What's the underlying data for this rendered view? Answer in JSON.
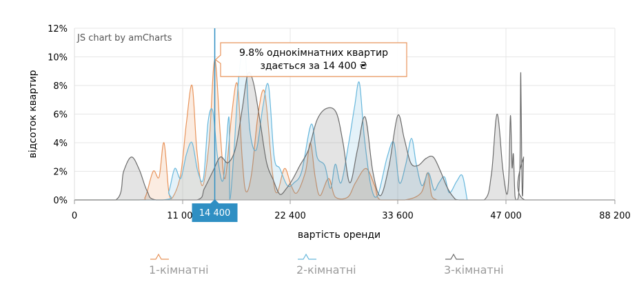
{
  "chart_data": {
    "type": "area",
    "credit": "JS chart by amCharts",
    "xlabel": "вартість оренди",
    "ylabel": "відсоток квартир",
    "xlim": [
      0,
      88200
    ],
    "ylim": [
      0,
      12
    ],
    "y_ticks": [
      {
        "value": 0,
        "label": "0%"
      },
      {
        "value": 2,
        "label": "2%"
      },
      {
        "value": 4,
        "label": "4%"
      },
      {
        "value": 6,
        "label": "6%"
      },
      {
        "value": 8,
        "label": "8%"
      },
      {
        "value": 10,
        "label": "10%"
      },
      {
        "value": 12,
        "label": "12%"
      }
    ],
    "x_ticks": [
      {
        "value": 0,
        "label": "0"
      },
      {
        "value": 11000,
        "label": "11 000"
      },
      {
        "value": 22400,
        "label": "22 400"
      },
      {
        "value": 33600,
        "label": "33 600"
      },
      {
        "value": 47000,
        "label": "47 000"
      },
      {
        "value": 88200,
        "label": "88 200"
      }
    ],
    "grid": true,
    "legend_position": "bottom",
    "cursor": {
      "x": 14400,
      "label": "14 400",
      "tooltip_line1": "9.8% однокімнатних квартир",
      "tooltip_line2": "здається за 14 400 ₴"
    },
    "series": [
      {
        "name": "1-кімнатні",
        "color": "#e8935a",
        "points": [
          [
            0,
            0
          ],
          [
            6500,
            0
          ],
          [
            7200,
            0.2
          ],
          [
            8000,
            2.0
          ],
          [
            8600,
            1.6
          ],
          [
            9100,
            4.0
          ],
          [
            9600,
            0.5
          ],
          [
            10000,
            0.2
          ],
          [
            10800,
            1.8
          ],
          [
            11400,
            5.4
          ],
          [
            12000,
            8.0
          ],
          [
            12500,
            3.5
          ],
          [
            13100,
            1.0
          ],
          [
            13800,
            4.0
          ],
          [
            14400,
            9.8
          ],
          [
            15000,
            4.5
          ],
          [
            15500,
            1.5
          ],
          [
            16200,
            6.0
          ],
          [
            16800,
            8.1
          ],
          [
            17300,
            3.0
          ],
          [
            17700,
            0.6
          ],
          [
            18300,
            1.8
          ],
          [
            19000,
            6.0
          ],
          [
            19700,
            7.5
          ],
          [
            20500,
            2.0
          ],
          [
            21000,
            0.5
          ],
          [
            21800,
            2.2
          ],
          [
            22500,
            1.0
          ],
          [
            23100,
            0.5
          ],
          [
            24000,
            2.0
          ],
          [
            24500,
            4.0
          ],
          [
            25000,
            1.6
          ],
          [
            25500,
            0.3
          ],
          [
            26400,
            1.5
          ],
          [
            27100,
            0.2
          ],
          [
            28400,
            0.2
          ],
          [
            29200,
            1.2
          ],
          [
            30300,
            2.2
          ],
          [
            31200,
            1.0
          ],
          [
            31800,
            0
          ],
          [
            34500,
            0
          ],
          [
            36500,
            0.5
          ],
          [
            37300,
            1.9
          ],
          [
            37800,
            0.3
          ],
          [
            38500,
            0
          ]
        ]
      },
      {
        "name": "2-кімнатні",
        "color": "#67b7dc",
        "points": [
          [
            0,
            0
          ],
          [
            16000,
            0
          ],
          [
            9000,
            0
          ],
          [
            9600,
            0.6
          ],
          [
            10200,
            2.2
          ],
          [
            10800,
            1.5
          ],
          [
            11400,
            3.2
          ],
          [
            12000,
            4.0
          ],
          [
            12600,
            2.0
          ],
          [
            13200,
            1.5
          ],
          [
            13700,
            5.5
          ],
          [
            14200,
            6.2
          ],
          [
            14700,
            3.0
          ],
          [
            15300,
            1.4
          ],
          [
            15900,
            5.8
          ],
          [
            16400,
            3.0
          ],
          [
            17000,
            9.0
          ],
          [
            17600,
            10.5
          ],
          [
            18100,
            5.0
          ],
          [
            18800,
            3.5
          ],
          [
            19500,
            6.5
          ],
          [
            20100,
            8.0
          ],
          [
            20700,
            3.0
          ],
          [
            21300,
            2.2
          ],
          [
            22100,
            1.0
          ],
          [
            22800,
            1.2
          ],
          [
            23600,
            2.0
          ],
          [
            24600,
            5.3
          ],
          [
            25200,
            3.0
          ],
          [
            26000,
            2.4
          ],
          [
            26600,
            0.8
          ],
          [
            27100,
            2.5
          ],
          [
            27700,
            1.2
          ],
          [
            28500,
            4.0
          ],
          [
            29100,
            6.5
          ],
          [
            29600,
            8.2
          ],
          [
            30100,
            4.5
          ],
          [
            30800,
            1.0
          ],
          [
            31500,
            0.3
          ],
          [
            32500,
            3.0
          ],
          [
            33200,
            4.0
          ],
          [
            33800,
            1.2
          ],
          [
            34600,
            2.5
          ],
          [
            35300,
            4.3
          ],
          [
            35900,
            2.5
          ],
          [
            36600,
            1.0
          ],
          [
            37400,
            1.9
          ],
          [
            38100,
            0.7
          ],
          [
            38700,
            1.2
          ],
          [
            39400,
            1.6
          ],
          [
            40000,
            0.5
          ],
          [
            40900,
            1.3
          ],
          [
            41600,
            1.7
          ],
          [
            42200,
            0
          ]
        ]
      },
      {
        "name": "3-кімнатні",
        "color": "#6b6b6b",
        "points": [
          [
            0,
            0
          ],
          [
            4200,
            0
          ],
          [
            5000,
            2.0
          ],
          [
            5800,
            3.0
          ],
          [
            6600,
            2.1
          ],
          [
            7400,
            0.6
          ],
          [
            8300,
            0
          ],
          [
            12500,
            0
          ],
          [
            13300,
            0.8
          ],
          [
            14200,
            2.0
          ],
          [
            15000,
            3.0
          ],
          [
            15800,
            2.6
          ],
          [
            16600,
            3.6
          ],
          [
            17300,
            6.3
          ],
          [
            17900,
            8.8
          ],
          [
            18500,
            8.2
          ],
          [
            19200,
            5.5
          ],
          [
            19900,
            2.6
          ],
          [
            20600,
            1.4
          ],
          [
            21300,
            0.4
          ],
          [
            22000,
            0.8
          ],
          [
            22700,
            1.5
          ],
          [
            23400,
            2.4
          ],
          [
            24300,
            3.5
          ],
          [
            25200,
            5.6
          ],
          [
            26200,
            6.4
          ],
          [
            27200,
            6.1
          ],
          [
            27900,
            4.0
          ],
          [
            28600,
            1.2
          ],
          [
            29400,
            3.5
          ],
          [
            30200,
            5.8
          ],
          [
            31000,
            2.0
          ],
          [
            31800,
            0.3
          ],
          [
            32700,
            2.4
          ],
          [
            33600,
            5.9
          ],
          [
            34400,
            4.3
          ],
          [
            35200,
            2.6
          ],
          [
            36100,
            2.4
          ],
          [
            37100,
            2.9
          ],
          [
            38000,
            3.0
          ],
          [
            38900,
            2.0
          ],
          [
            39700,
            0.9
          ],
          [
            40500,
            0.2
          ],
          [
            41200,
            0
          ],
          [
            44300,
            0
          ],
          [
            45200,
            1.8
          ],
          [
            45900,
            6.0
          ],
          [
            46600,
            2.2
          ],
          [
            47300,
            0.4
          ],
          [
            48100,
            1.8
          ],
          [
            48700,
            5.9
          ],
          [
            49300,
            2.3
          ],
          [
            49800,
            3.2
          ],
          [
            50400,
            0.3
          ],
          [
            51000,
            0
          ],
          [
            51700,
            0.2
          ],
          [
            52300,
            2.5
          ],
          [
            52600,
            8.9
          ],
          [
            53000,
            2.0
          ],
          [
            53300,
            0.3
          ],
          [
            53700,
            3.0
          ],
          [
            54100,
            0
          ],
          [
            88200,
            0
          ]
        ]
      }
    ]
  }
}
